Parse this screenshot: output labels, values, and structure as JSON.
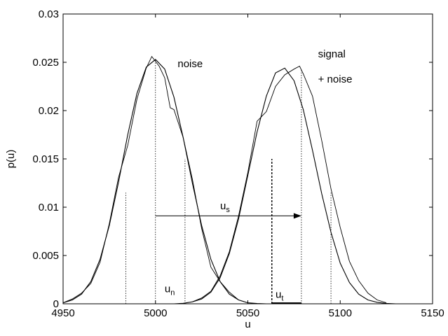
{
  "chart_data": {
    "type": "line",
    "title": "",
    "xlabel": "u",
    "ylabel": "p(u)",
    "xlim": [
      4950,
      5150
    ],
    "ylim": [
      0,
      0.03
    ],
    "xticks": [
      4950,
      5000,
      5050,
      5100,
      5150
    ],
    "xtick_labels": [
      "4950",
      "5000",
      "5050",
      "5100",
      "5150"
    ],
    "yticks": [
      0,
      0.005,
      0.01,
      0.015,
      0.02,
      0.025,
      0.03
    ],
    "ytick_labels": [
      "0",
      "0.005",
      "0.01",
      "0.015",
      "0.02",
      "0.025",
      "0.03"
    ],
    "grid": false,
    "series": [
      {
        "name": "noise",
        "style": "fitted-curve",
        "x": [
          4950,
          4955,
          4960,
          4965,
          4970,
          4975,
          4980,
          4985,
          4990,
          4995,
          5000,
          5005,
          5010,
          5015,
          5020,
          5025,
          5030,
          5035,
          5040,
          5045,
          5050,
          5055,
          5060
        ],
        "y": [
          0.0001,
          0.0004,
          0.001,
          0.0023,
          0.0046,
          0.0081,
          0.0126,
          0.0175,
          0.0218,
          0.0245,
          0.0253,
          0.0243,
          0.0214,
          0.0172,
          0.0125,
          0.0081,
          0.0046,
          0.0023,
          0.001,
          0.0004,
          0.0001,
          3e-05,
          0.0
        ]
      },
      {
        "name": "noise",
        "style": "histogram-estimate",
        "x": [
          4950,
          4955,
          4960,
          4965,
          4970,
          4975,
          4980,
          4985,
          4990,
          4995,
          4998,
          5000,
          5002,
          5005,
          5008,
          5010,
          5015,
          5020,
          5025,
          5030,
          5035,
          5040,
          5045,
          5050
        ],
        "y": [
          0.0001,
          0.0005,
          0.0011,
          0.0021,
          0.0043,
          0.0083,
          0.0131,
          0.0164,
          0.0212,
          0.0244,
          0.0256,
          0.0251,
          0.0246,
          0.0234,
          0.0203,
          0.0201,
          0.0172,
          0.0129,
          0.0078,
          0.0038,
          0.0023,
          0.0012,
          0.0004,
          0.0001
        ]
      },
      {
        "name": "signal + noise",
        "style": "fitted-curve",
        "x": [
          5010,
          5015,
          5020,
          5025,
          5030,
          5035,
          5040,
          5045,
          5050,
          5055,
          5060,
          5065,
          5070,
          5075,
          5080,
          5085,
          5090,
          5095,
          5100,
          5105,
          5110,
          5115,
          5120,
          5125,
          5130
        ],
        "y": [
          0.0,
          5e-05,
          0.0002,
          0.0005,
          0.0012,
          0.0027,
          0.0052,
          0.0088,
          0.0133,
          0.0178,
          0.0215,
          0.0239,
          0.0244,
          0.0231,
          0.0201,
          0.0159,
          0.0114,
          0.0074,
          0.0042,
          0.0022,
          0.001,
          0.0004,
          0.00015,
          4e-05,
          0.0
        ]
      },
      {
        "name": "signal + noise",
        "style": "histogram-estimate",
        "x": [
          5020,
          5025,
          5030,
          5035,
          5040,
          5045,
          5050,
          5055,
          5060,
          5065,
          5070,
          5075,
          5078,
          5080,
          5085,
          5090,
          5095,
          5100,
          5105,
          5110,
          5115,
          5120,
          5125
        ],
        "y": [
          0.0002,
          0.0006,
          0.0013,
          0.0029,
          0.0054,
          0.0091,
          0.0136,
          0.0189,
          0.0199,
          0.0225,
          0.0237,
          0.0243,
          0.0246,
          0.0238,
          0.0215,
          0.0169,
          0.0119,
          0.0079,
          0.0044,
          0.0024,
          0.0011,
          0.0004,
          0.0001
        ]
      }
    ],
    "vertical_lines": [
      {
        "x": 4984,
        "y_top": 0.0115,
        "style": "dotted"
      },
      {
        "x": 5000,
        "y_top": 0.0253,
        "style": "dotted"
      },
      {
        "x": 5016,
        "y_top": 0.015,
        "style": "dotted"
      },
      {
        "x": 5063,
        "y_top": 0.015,
        "style": "dashed"
      },
      {
        "x": 5079,
        "y_top": 0.0243,
        "style": "dotted"
      },
      {
        "x": 5095,
        "y_top": 0.0115,
        "style": "dotted"
      }
    ],
    "arrow": {
      "x_from": 5000,
      "x_to": 5079,
      "y": 0.0091
    },
    "threshold_segment": {
      "x_from": 5063,
      "x_to": 5079,
      "y": 0.0
    },
    "annotations": [
      {
        "id": "noise",
        "text": "noise",
        "x": 5012,
        "y": 0.0245
      },
      {
        "id": "signal1",
        "text": "signal",
        "x": 5088,
        "y": 0.0255
      },
      {
        "id": "signal2",
        "text": "+ noise",
        "x": 5088,
        "y": 0.0229
      },
      {
        "id": "us",
        "text": "u",
        "sub": "s",
        "x": 5035,
        "y": 0.0098
      },
      {
        "id": "un",
        "text": "u",
        "sub": "n",
        "x": 5005,
        "y": 0.0012
      },
      {
        "id": "ut",
        "text": "u",
        "sub": "t",
        "x": 5065,
        "y": 0.0006
      }
    ]
  }
}
